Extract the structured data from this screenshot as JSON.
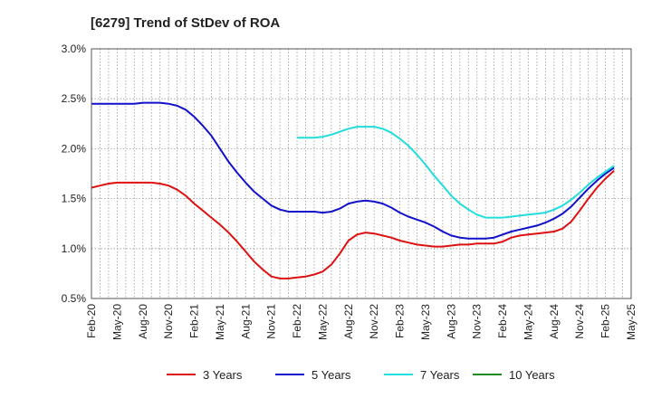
{
  "chart_data": {
    "type": "line",
    "title": "[6279]  Trend of StDev of ROA",
    "xlabel": "",
    "ylabel": "",
    "x_ticks": [
      "Feb-20",
      "May-20",
      "Aug-20",
      "Nov-20",
      "Feb-21",
      "May-21",
      "Aug-21",
      "Nov-21",
      "Feb-22",
      "May-22",
      "Aug-22",
      "Nov-22",
      "Feb-23",
      "May-23",
      "Aug-23",
      "Nov-23",
      "Feb-24",
      "May-24",
      "Aug-24",
      "Nov-24",
      "Feb-25",
      "May-25"
    ],
    "y_ticks": [
      "0.5%",
      "1.0%",
      "1.5%",
      "2.0%",
      "2.5%",
      "3.0%"
    ],
    "ylim": [
      0.5,
      3.0
    ],
    "grid": true,
    "legend_position": "bottom",
    "series": [
      {
        "name": "3 Years",
        "color": "#dd1111",
        "points": [
          [
            "Feb-20",
            1.61
          ],
          [
            "Mar-20",
            1.63
          ],
          [
            "Apr-20",
            1.65
          ],
          [
            "May-20",
            1.66
          ],
          [
            "Jun-20",
            1.66
          ],
          [
            "Jul-20",
            1.66
          ],
          [
            "Aug-20",
            1.66
          ],
          [
            "Sep-20",
            1.66
          ],
          [
            "Oct-20",
            1.65
          ],
          [
            "Nov-20",
            1.63
          ],
          [
            "Dec-20",
            1.59
          ],
          [
            "Jan-21",
            1.53
          ],
          [
            "Feb-21",
            1.45
          ],
          [
            "Mar-21",
            1.38
          ],
          [
            "Apr-21",
            1.31
          ],
          [
            "May-21",
            1.24
          ],
          [
            "Jun-21",
            1.16
          ],
          [
            "Jul-21",
            1.07
          ],
          [
            "Aug-21",
            0.97
          ],
          [
            "Sep-21",
            0.87
          ],
          [
            "Oct-21",
            0.79
          ],
          [
            "Nov-21",
            0.72
          ],
          [
            "Dec-21",
            0.7
          ],
          [
            "Jan-22",
            0.7
          ],
          [
            "Feb-22",
            0.71
          ],
          [
            "Mar-22",
            0.72
          ],
          [
            "Apr-22",
            0.74
          ],
          [
            "May-22",
            0.77
          ],
          [
            "Jun-22",
            0.84
          ],
          [
            "Jul-22",
            0.95
          ],
          [
            "Aug-22",
            1.08
          ],
          [
            "Sep-22",
            1.14
          ],
          [
            "Oct-22",
            1.16
          ],
          [
            "Nov-22",
            1.15
          ],
          [
            "Dec-22",
            1.13
          ],
          [
            "Jan-23",
            1.11
          ],
          [
            "Feb-23",
            1.08
          ],
          [
            "Mar-23",
            1.06
          ],
          [
            "Apr-23",
            1.04
          ],
          [
            "May-23",
            1.03
          ],
          [
            "Jun-23",
            1.02
          ],
          [
            "Jul-23",
            1.02
          ],
          [
            "Aug-23",
            1.03
          ],
          [
            "Sep-23",
            1.04
          ],
          [
            "Oct-23",
            1.04
          ],
          [
            "Nov-23",
            1.05
          ],
          [
            "Dec-23",
            1.05
          ],
          [
            "Jan-24",
            1.05
          ],
          [
            "Feb-24",
            1.07
          ],
          [
            "Mar-24",
            1.11
          ],
          [
            "Apr-24",
            1.13
          ],
          [
            "May-24",
            1.14
          ],
          [
            "Jun-24",
            1.15
          ],
          [
            "Jul-24",
            1.16
          ],
          [
            "Aug-24",
            1.17
          ],
          [
            "Sep-24",
            1.2
          ],
          [
            "Oct-24",
            1.27
          ],
          [
            "Nov-24",
            1.38
          ],
          [
            "Dec-24",
            1.5
          ],
          [
            "Jan-25",
            1.61
          ],
          [
            "Feb-25",
            1.7
          ],
          [
            "Mar-25",
            1.78
          ]
        ]
      },
      {
        "name": "5 Years",
        "color": "#1111cc",
        "points": [
          [
            "Feb-20",
            2.45
          ],
          [
            "Mar-20",
            2.45
          ],
          [
            "Apr-20",
            2.45
          ],
          [
            "May-20",
            2.45
          ],
          [
            "Jun-20",
            2.45
          ],
          [
            "Jul-20",
            2.45
          ],
          [
            "Aug-20",
            2.46
          ],
          [
            "Sep-20",
            2.46
          ],
          [
            "Oct-20",
            2.46
          ],
          [
            "Nov-20",
            2.45
          ],
          [
            "Dec-20",
            2.43
          ],
          [
            "Jan-21",
            2.39
          ],
          [
            "Feb-21",
            2.32
          ],
          [
            "Mar-21",
            2.23
          ],
          [
            "Apr-21",
            2.13
          ],
          [
            "May-21",
            2.0
          ],
          [
            "Jun-21",
            1.87
          ],
          [
            "Jul-21",
            1.76
          ],
          [
            "Aug-21",
            1.66
          ],
          [
            "Sep-21",
            1.57
          ],
          [
            "Oct-21",
            1.5
          ],
          [
            "Nov-21",
            1.43
          ],
          [
            "Dec-21",
            1.39
          ],
          [
            "Jan-22",
            1.37
          ],
          [
            "Feb-22",
            1.37
          ],
          [
            "Mar-22",
            1.37
          ],
          [
            "Apr-22",
            1.37
          ],
          [
            "May-22",
            1.36
          ],
          [
            "Jun-22",
            1.37
          ],
          [
            "Jul-22",
            1.4
          ],
          [
            "Aug-22",
            1.45
          ],
          [
            "Sep-22",
            1.47
          ],
          [
            "Oct-22",
            1.48
          ],
          [
            "Nov-22",
            1.47
          ],
          [
            "Dec-22",
            1.45
          ],
          [
            "Jan-23",
            1.41
          ],
          [
            "Feb-23",
            1.36
          ],
          [
            "Mar-23",
            1.32
          ],
          [
            "Apr-23",
            1.29
          ],
          [
            "May-23",
            1.26
          ],
          [
            "Jun-23",
            1.22
          ],
          [
            "Jul-23",
            1.17
          ],
          [
            "Aug-23",
            1.13
          ],
          [
            "Sep-23",
            1.11
          ],
          [
            "Oct-23",
            1.1
          ],
          [
            "Nov-23",
            1.1
          ],
          [
            "Dec-23",
            1.1
          ],
          [
            "Jan-24",
            1.11
          ],
          [
            "Feb-24",
            1.14
          ],
          [
            "Mar-24",
            1.17
          ],
          [
            "Apr-24",
            1.19
          ],
          [
            "May-24",
            1.21
          ],
          [
            "Jun-24",
            1.23
          ],
          [
            "Jul-24",
            1.26
          ],
          [
            "Aug-24",
            1.3
          ],
          [
            "Sep-24",
            1.35
          ],
          [
            "Oct-24",
            1.42
          ],
          [
            "Nov-24",
            1.51
          ],
          [
            "Dec-24",
            1.6
          ],
          [
            "Jan-25",
            1.68
          ],
          [
            "Feb-25",
            1.75
          ],
          [
            "Mar-25",
            1.81
          ]
        ]
      },
      {
        "name": "7 Years",
        "color": "#22dddd",
        "points": [
          [
            "Feb-22",
            2.11
          ],
          [
            "Mar-22",
            2.11
          ],
          [
            "Apr-22",
            2.11
          ],
          [
            "May-22",
            2.12
          ],
          [
            "Jun-22",
            2.14
          ],
          [
            "Jul-22",
            2.17
          ],
          [
            "Aug-22",
            2.2
          ],
          [
            "Sep-22",
            2.22
          ],
          [
            "Oct-22",
            2.22
          ],
          [
            "Nov-22",
            2.22
          ],
          [
            "Dec-22",
            2.2
          ],
          [
            "Jan-23",
            2.16
          ],
          [
            "Feb-23",
            2.1
          ],
          [
            "Mar-23",
            2.03
          ],
          [
            "Apr-23",
            1.94
          ],
          [
            "May-23",
            1.84
          ],
          [
            "Jun-23",
            1.73
          ],
          [
            "Jul-23",
            1.63
          ],
          [
            "Aug-23",
            1.53
          ],
          [
            "Sep-23",
            1.45
          ],
          [
            "Oct-23",
            1.39
          ],
          [
            "Nov-23",
            1.34
          ],
          [
            "Dec-23",
            1.31
          ],
          [
            "Jan-24",
            1.31
          ],
          [
            "Feb-24",
            1.31
          ],
          [
            "Mar-24",
            1.32
          ],
          [
            "Apr-24",
            1.33
          ],
          [
            "May-24",
            1.34
          ],
          [
            "Jun-24",
            1.35
          ],
          [
            "Jul-24",
            1.36
          ],
          [
            "Aug-24",
            1.39
          ],
          [
            "Sep-24",
            1.43
          ],
          [
            "Oct-24",
            1.49
          ],
          [
            "Nov-24",
            1.56
          ],
          [
            "Dec-24",
            1.64
          ],
          [
            "Jan-25",
            1.71
          ],
          [
            "Feb-25",
            1.77
          ],
          [
            "Mar-25",
            1.83
          ]
        ]
      },
      {
        "name": "10 Years",
        "color": "#228822",
        "points": []
      }
    ]
  }
}
